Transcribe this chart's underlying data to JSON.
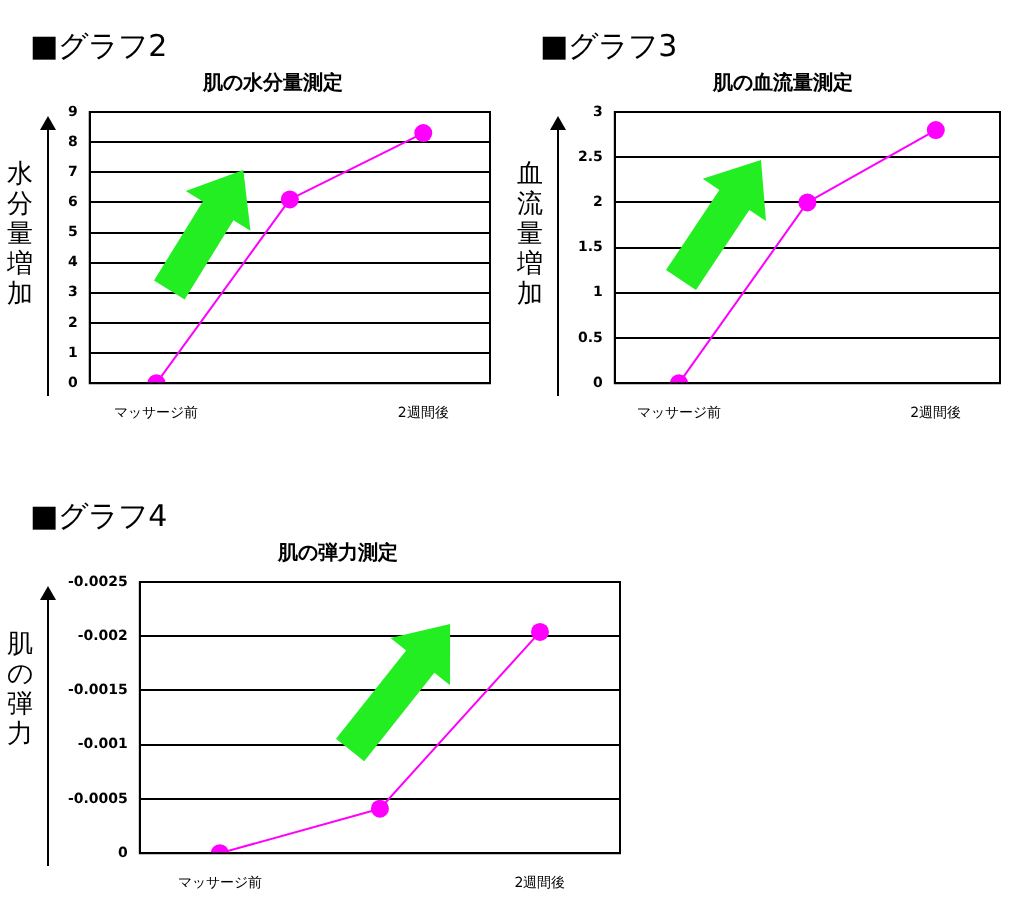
{
  "chart_data": [
    {
      "type": "line",
      "title": "■グラフ2",
      "subtitle": "肌の水分量測定",
      "ylabel": "水分量増加",
      "categories": [
        "マッサージ前",
        null,
        "2週間後"
      ],
      "series": [
        {
          "color": "#ff00ff",
          "values": [
            0,
            6.1,
            8.3
          ]
        }
      ],
      "ylim": [
        0,
        9
      ],
      "yticks": [
        0,
        1,
        2,
        3,
        4,
        5,
        6,
        7,
        8,
        9
      ],
      "grid": "y",
      "legend": false,
      "marker": "circle",
      "line_style": "solid"
    },
    {
      "type": "line",
      "title": "■グラフ3",
      "subtitle": "肌の血流量測定",
      "ylabel": "血流量増加",
      "categories": [
        "マッサージ前",
        null,
        "2週間後"
      ],
      "series": [
        {
          "color": "#ff00ff",
          "values": [
            0,
            2,
            2.8
          ]
        }
      ],
      "ylim": [
        0,
        3
      ],
      "yticks": [
        0,
        0.5,
        1,
        1.5,
        2,
        2.5,
        3
      ],
      "grid": "y",
      "legend": false,
      "marker": "circle",
      "line_style": "solid"
    },
    {
      "type": "line",
      "title": "■グラフ4",
      "subtitle": "肌の弾力測定",
      "ylabel": "肌の弾力",
      "categories": [
        "マッサージ前",
        null,
        "2週間後"
      ],
      "series": [
        {
          "color": "#ff00ff",
          "values": [
            0,
            -0.00041,
            -0.00204
          ]
        }
      ],
      "ylim": [
        0,
        -0.0025
      ],
      "yticks": [
        0,
        -0.0005,
        -0.001,
        -0.0015,
        -0.002,
        -0.0025
      ],
      "grid": "y",
      "legend": false,
      "marker": "circle",
      "line_style": "solid"
    }
  ]
}
